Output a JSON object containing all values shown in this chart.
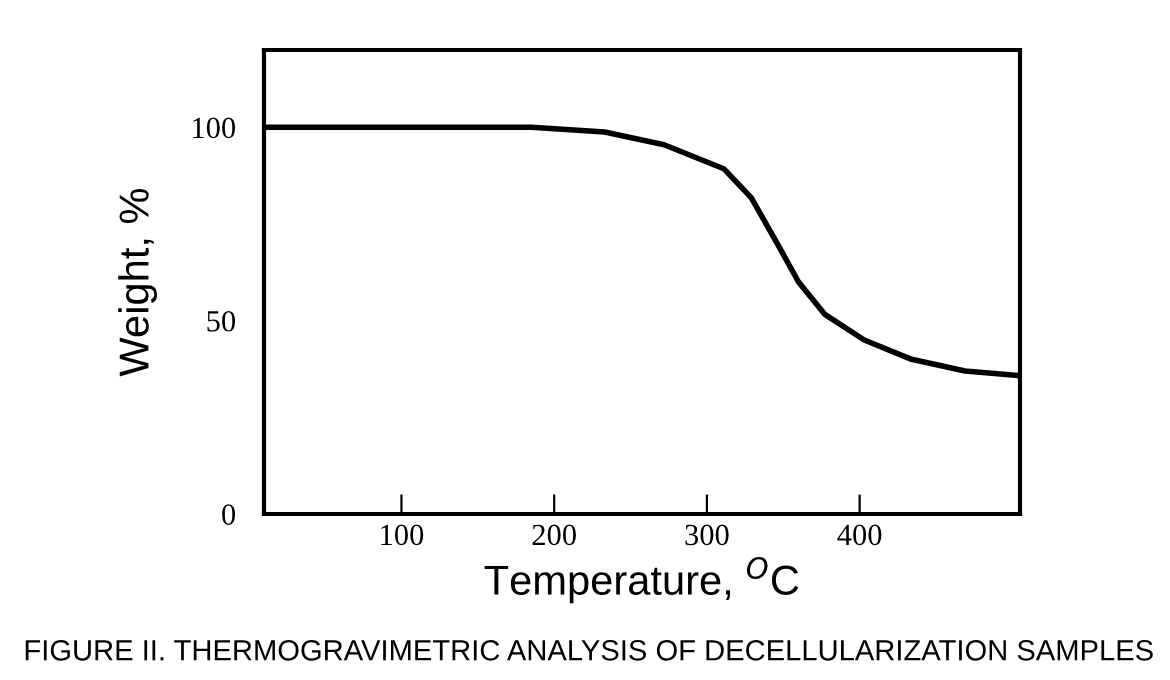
{
  "chart_data": {
    "type": "line",
    "xlabel": "Temperature, $^{O}$C",
    "ylabel": "Weight, %",
    "x": [
      10,
      185,
      233,
      272,
      311,
      329,
      346,
      360,
      377,
      403,
      434,
      469,
      504
    ],
    "series": [
      {
        "color": "#000000",
        "values": [
          100,
          100,
          98.8,
          95.5,
          89.3,
          81.8,
          70,
          60,
          51.7,
          45,
          40,
          37,
          35.8
        ]
      }
    ],
    "xlim": [
      10,
      505
    ],
    "xticks": [
      100,
      200,
      300,
      400
    ],
    "ylim": [
      0,
      120
    ],
    "yticks": [
      0,
      50,
      100
    ],
    "grid": false,
    "legend": false,
    "marker": "none",
    "line_style": "solid",
    "annotations": [
      "FIGURE II. THERMOGRAVIMETRIC ANALYSIS OF DECELLULARIZATION SAMPLES"
    ]
  }
}
